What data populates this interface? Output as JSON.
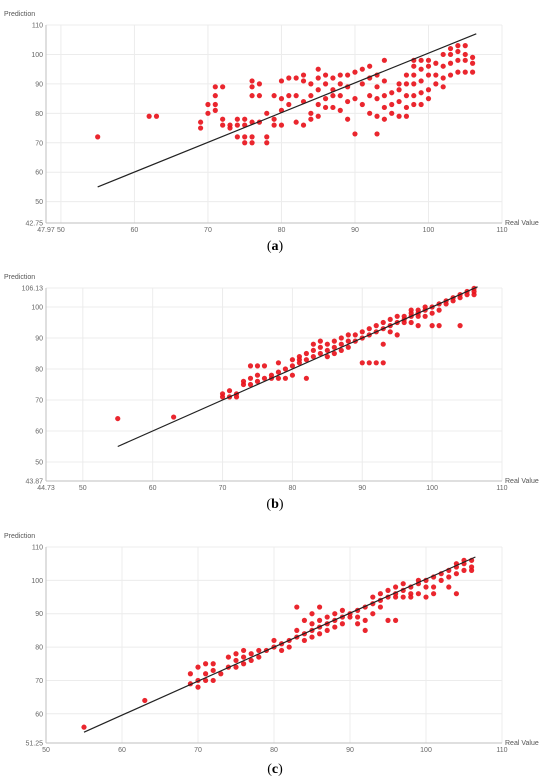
{
  "chart_data": [
    {
      "panel": "a",
      "caption_letter": "a",
      "type": "scatter",
      "xlabel": "Real Value",
      "ylabel": "Prediction",
      "xlim": [
        47.97,
        110
      ],
      "ylim": [
        42.75,
        110
      ],
      "x_ticks": [
        "47.97",
        "50",
        "60",
        "70",
        "80",
        "90",
        "100",
        "110"
      ],
      "y_ticks": [
        "42.75",
        "50",
        "60",
        "70",
        "80",
        "90",
        "100",
        "110"
      ],
      "grid": true,
      "point_color": "#e8141c",
      "line_color": "#222222",
      "fit_line": {
        "x": [
          55,
          106.5
        ],
        "y": [
          55,
          107
        ]
      },
      "points": [
        [
          55,
          72
        ],
        [
          62,
          79
        ],
        [
          63,
          79
        ],
        [
          69,
          75
        ],
        [
          69,
          77
        ],
        [
          70,
          80
        ],
        [
          70,
          83
        ],
        [
          71,
          83
        ],
        [
          71,
          86
        ],
        [
          71,
          89
        ],
        [
          71,
          81
        ],
        [
          72,
          89
        ],
        [
          72,
          76
        ],
        [
          72,
          78
        ],
        [
          73,
          76
        ],
        [
          73,
          75
        ],
        [
          74,
          76
        ],
        [
          74,
          72
        ],
        [
          74,
          78
        ],
        [
          75,
          70
        ],
        [
          75,
          72
        ],
        [
          75,
          76
        ],
        [
          75,
          78
        ],
        [
          76,
          91
        ],
        [
          76,
          89
        ],
        [
          76,
          86
        ],
        [
          76,
          77
        ],
        [
          76,
          72
        ],
        [
          76,
          70
        ],
        [
          77,
          90
        ],
        [
          77,
          86
        ],
        [
          77,
          77
        ],
        [
          78,
          80
        ],
        [
          78,
          72
        ],
        [
          78,
          70
        ],
        [
          79,
          86
        ],
        [
          79,
          78
        ],
        [
          79,
          76
        ],
        [
          80,
          85
        ],
        [
          80,
          91
        ],
        [
          80,
          81
        ],
        [
          80,
          76
        ],
        [
          81,
          92
        ],
        [
          81,
          86
        ],
        [
          81,
          83
        ],
        [
          82,
          92
        ],
        [
          82,
          86
        ],
        [
          82,
          77
        ],
        [
          83,
          93
        ],
        [
          83,
          91
        ],
        [
          83,
          84
        ],
        [
          83,
          76
        ],
        [
          84,
          90
        ],
        [
          84,
          86
        ],
        [
          84,
          80
        ],
        [
          84,
          78
        ],
        [
          85,
          95
        ],
        [
          85,
          92
        ],
        [
          85,
          88
        ],
        [
          85,
          83
        ],
        [
          85,
          79
        ],
        [
          86,
          93
        ],
        [
          86,
          90
        ],
        [
          86,
          85
        ],
        [
          86,
          82
        ],
        [
          87,
          92
        ],
        [
          87,
          88
        ],
        [
          87,
          86
        ],
        [
          87,
          82
        ],
        [
          88,
          93
        ],
        [
          88,
          90
        ],
        [
          88,
          86
        ],
        [
          88,
          81
        ],
        [
          89,
          93
        ],
        [
          89,
          89
        ],
        [
          89,
          84
        ],
        [
          89,
          78
        ],
        [
          90,
          94
        ],
        [
          90,
          85
        ],
        [
          90,
          73
        ],
        [
          91,
          95
        ],
        [
          91,
          90
        ],
        [
          91,
          83
        ],
        [
          92,
          96
        ],
        [
          92,
          92
        ],
        [
          92,
          86
        ],
        [
          92,
          80
        ],
        [
          93,
          93
        ],
        [
          93,
          89
        ],
        [
          93,
          85
        ],
        [
          93,
          79
        ],
        [
          93,
          73
        ],
        [
          94,
          98
        ],
        [
          94,
          91
        ],
        [
          94,
          86
        ],
        [
          94,
          82
        ],
        [
          94,
          78
        ],
        [
          95,
          87
        ],
        [
          95,
          83
        ],
        [
          95,
          80
        ],
        [
          96,
          90
        ],
        [
          96,
          88
        ],
        [
          96,
          84
        ],
        [
          96,
          79
        ],
        [
          97,
          93
        ],
        [
          97,
          90
        ],
        [
          97,
          86
        ],
        [
          97,
          82
        ],
        [
          97,
          79
        ],
        [
          98,
          98
        ],
        [
          98,
          96
        ],
        [
          98,
          93
        ],
        [
          98,
          90
        ],
        [
          98,
          86
        ],
        [
          98,
          83
        ],
        [
          99,
          98
        ],
        [
          99,
          95
        ],
        [
          99,
          91
        ],
        [
          99,
          87
        ],
        [
          99,
          83
        ],
        [
          100,
          98
        ],
        [
          100,
          96
        ],
        [
          100,
          93
        ],
        [
          100,
          88
        ],
        [
          100,
          85
        ],
        [
          101,
          97
        ],
        [
          101,
          93
        ],
        [
          101,
          90
        ],
        [
          102,
          100
        ],
        [
          102,
          96
        ],
        [
          102,
          92
        ],
        [
          102,
          89
        ],
        [
          103,
          102
        ],
        [
          103,
          100
        ],
        [
          103,
          97
        ],
        [
          103,
          93
        ],
        [
          104,
          103
        ],
        [
          104,
          101
        ],
        [
          104,
          98
        ],
        [
          104,
          94
        ],
        [
          105,
          103
        ],
        [
          105,
          100
        ],
        [
          105,
          98
        ],
        [
          105,
          94
        ],
        [
          106,
          99
        ],
        [
          106,
          97
        ],
        [
          106,
          94
        ]
      ]
    },
    {
      "panel": "b",
      "caption_letter": "b",
      "type": "scatter",
      "xlabel": "Real Value",
      "ylabel": "Prediction",
      "xlim": [
        44.73,
        110
      ],
      "ylim": [
        43.87,
        106.13
      ],
      "x_ticks": [
        "44.73",
        "50",
        "60",
        "70",
        "80",
        "90",
        "100",
        "110"
      ],
      "y_ticks": [
        "43.87",
        "50",
        "60",
        "70",
        "80",
        "90",
        "100",
        "106.13"
      ],
      "grid": true,
      "point_color": "#e8141c",
      "line_color": "#222222",
      "fit_line": {
        "x": [
          55,
          106.5
        ],
        "y": [
          55,
          106.5
        ]
      },
      "points": [
        [
          55,
          64
        ],
        [
          63,
          64.5
        ],
        [
          70,
          71
        ],
        [
          70,
          72
        ],
        [
          71,
          71
        ],
        [
          71,
          73
        ],
        [
          72,
          72
        ],
        [
          72,
          71
        ],
        [
          73,
          75
        ],
        [
          73,
          76
        ],
        [
          74,
          75
        ],
        [
          74,
          77
        ],
        [
          74,
          81
        ],
        [
          75,
          76
        ],
        [
          75,
          78
        ],
        [
          75,
          81
        ],
        [
          76,
          77
        ],
        [
          76,
          81
        ],
        [
          77,
          77
        ],
        [
          77,
          78
        ],
        [
          78,
          77
        ],
        [
          78,
          79
        ],
        [
          78,
          82
        ],
        [
          79,
          77
        ],
        [
          79,
          80
        ],
        [
          80,
          81
        ],
        [
          80,
          83
        ],
        [
          80,
          78
        ],
        [
          81,
          82
        ],
        [
          81,
          84
        ],
        [
          81,
          83
        ],
        [
          82,
          83
        ],
        [
          82,
          85
        ],
        [
          82,
          77
        ],
        [
          83,
          84
        ],
        [
          83,
          86
        ],
        [
          83,
          88
        ],
        [
          84,
          85
        ],
        [
          84,
          87
        ],
        [
          84,
          89
        ],
        [
          85,
          86
        ],
        [
          85,
          88
        ],
        [
          85,
          84
        ],
        [
          86,
          87
        ],
        [
          86,
          89
        ],
        [
          86,
          85
        ],
        [
          87,
          86
        ],
        [
          87,
          88
        ],
        [
          87,
          90
        ],
        [
          88,
          89
        ],
        [
          88,
          87
        ],
        [
          88,
          91
        ],
        [
          89,
          89
        ],
        [
          89,
          91
        ],
        [
          90,
          90
        ],
        [
          90,
          92
        ],
        [
          90,
          82
        ],
        [
          91,
          91
        ],
        [
          91,
          93
        ],
        [
          91,
          82
        ],
        [
          92,
          92
        ],
        [
          92,
          94
        ],
        [
          92,
          82
        ],
        [
          93,
          93
        ],
        [
          93,
          95
        ],
        [
          93,
          88
        ],
        [
          93,
          82
        ],
        [
          94,
          94
        ],
        [
          94,
          92
        ],
        [
          94,
          96
        ],
        [
          95,
          95
        ],
        [
          95,
          97
        ],
        [
          95,
          91
        ],
        [
          96,
          96
        ],
        [
          96,
          97
        ],
        [
          96,
          95
        ],
        [
          97,
          97
        ],
        [
          97,
          98
        ],
        [
          97,
          99
        ],
        [
          97,
          95
        ],
        [
          98,
          98
        ],
        [
          98,
          99
        ],
        [
          98,
          97
        ],
        [
          98,
          94
        ],
        [
          99,
          99
        ],
        [
          99,
          100
        ],
        [
          99,
          97
        ],
        [
          100,
          100
        ],
        [
          100,
          98
        ],
        [
          100,
          94
        ],
        [
          101,
          99
        ],
        [
          101,
          101
        ],
        [
          101,
          94
        ],
        [
          102,
          102
        ],
        [
          102,
          101
        ],
        [
          103,
          103
        ],
        [
          103,
          102
        ],
        [
          104,
          103
        ],
        [
          104,
          104
        ],
        [
          104,
          94
        ],
        [
          105,
          104
        ],
        [
          105,
          105
        ],
        [
          106,
          105
        ],
        [
          106,
          106
        ],
        [
          106,
          104
        ]
      ]
    },
    {
      "panel": "c",
      "caption_letter": "c",
      "type": "scatter",
      "xlabel": "Real Value",
      "ylabel": "Prediction",
      "xlim": [
        50,
        110
      ],
      "ylim": [
        51.25,
        110
      ],
      "x_ticks": [
        "50",
        "60",
        "70",
        "80",
        "90",
        "100",
        "110"
      ],
      "y_ticks": [
        "51.25",
        "60",
        "70",
        "80",
        "90",
        "100",
        "110"
      ],
      "grid": true,
      "point_color": "#e8141c",
      "line_color": "#222222",
      "fit_line": {
        "x": [
          55,
          106.5
        ],
        "y": [
          54.5,
          107
        ]
      },
      "points": [
        [
          55,
          56
        ],
        [
          63,
          64
        ],
        [
          69,
          69
        ],
        [
          69,
          72
        ],
        [
          70,
          70
        ],
        [
          70,
          68
        ],
        [
          70,
          74
        ],
        [
          71,
          70
        ],
        [
          71,
          72
        ],
        [
          71,
          75
        ],
        [
          72,
          73
        ],
        [
          72,
          70
        ],
        [
          72,
          75
        ],
        [
          73,
          72
        ],
        [
          74,
          74
        ],
        [
          74,
          77
        ],
        [
          75,
          76
        ],
        [
          75,
          74
        ],
        [
          75,
          78
        ],
        [
          76,
          75
        ],
        [
          76,
          77
        ],
        [
          76,
          79
        ],
        [
          77,
          78
        ],
        [
          77,
          76
        ],
        [
          78,
          77
        ],
        [
          78,
          79
        ],
        [
          79,
          79
        ],
        [
          80,
          80
        ],
        [
          80,
          82
        ],
        [
          81,
          81
        ],
        [
          81,
          79
        ],
        [
          82,
          82
        ],
        [
          82,
          80
        ],
        [
          83,
          83
        ],
        [
          83,
          85
        ],
        [
          83,
          92
        ],
        [
          84,
          84
        ],
        [
          84,
          82
        ],
        [
          84,
          88
        ],
        [
          85,
          85
        ],
        [
          85,
          87
        ],
        [
          85,
          83
        ],
        [
          85,
          90
        ],
        [
          86,
          86
        ],
        [
          86,
          88
        ],
        [
          86,
          84
        ],
        [
          86,
          92
        ],
        [
          87,
          87
        ],
        [
          87,
          89
        ],
        [
          87,
          85
        ],
        [
          88,
          88
        ],
        [
          88,
          90
        ],
        [
          88,
          86
        ],
        [
          89,
          89
        ],
        [
          89,
          91
        ],
        [
          89,
          87
        ],
        [
          90,
          89
        ],
        [
          90,
          90
        ],
        [
          91,
          91
        ],
        [
          91,
          89
        ],
        [
          91,
          87
        ],
        [
          92,
          92
        ],
        [
          92,
          88
        ],
        [
          92,
          85
        ],
        [
          93,
          93
        ],
        [
          93,
          95
        ],
        [
          93,
          90
        ],
        [
          94,
          94
        ],
        [
          94,
          96
        ],
        [
          94,
          92
        ],
        [
          95,
          95
        ],
        [
          95,
          97
        ],
        [
          95,
          88
        ],
        [
          96,
          96
        ],
        [
          96,
          95
        ],
        [
          96,
          98
        ],
        [
          96,
          88
        ],
        [
          97,
          97
        ],
        [
          97,
          95
        ],
        [
          97,
          99
        ],
        [
          98,
          98
        ],
        [
          98,
          96
        ],
        [
          98,
          95
        ],
        [
          99,
          99
        ],
        [
          99,
          96
        ],
        [
          99,
          100
        ],
        [
          100,
          100
        ],
        [
          100,
          95
        ],
        [
          100,
          98
        ],
        [
          101,
          101
        ],
        [
          101,
          98
        ],
        [
          101,
          96
        ],
        [
          102,
          102
        ],
        [
          102,
          100
        ],
        [
          103,
          103
        ],
        [
          103,
          101
        ],
        [
          103,
          98
        ],
        [
          104,
          104
        ],
        [
          104,
          102
        ],
        [
          104,
          105
        ],
        [
          104,
          96
        ],
        [
          105,
          105
        ],
        [
          105,
          103
        ],
        [
          105,
          106
        ],
        [
          106,
          106
        ],
        [
          106,
          104
        ],
        [
          106,
          103
        ]
      ]
    }
  ]
}
